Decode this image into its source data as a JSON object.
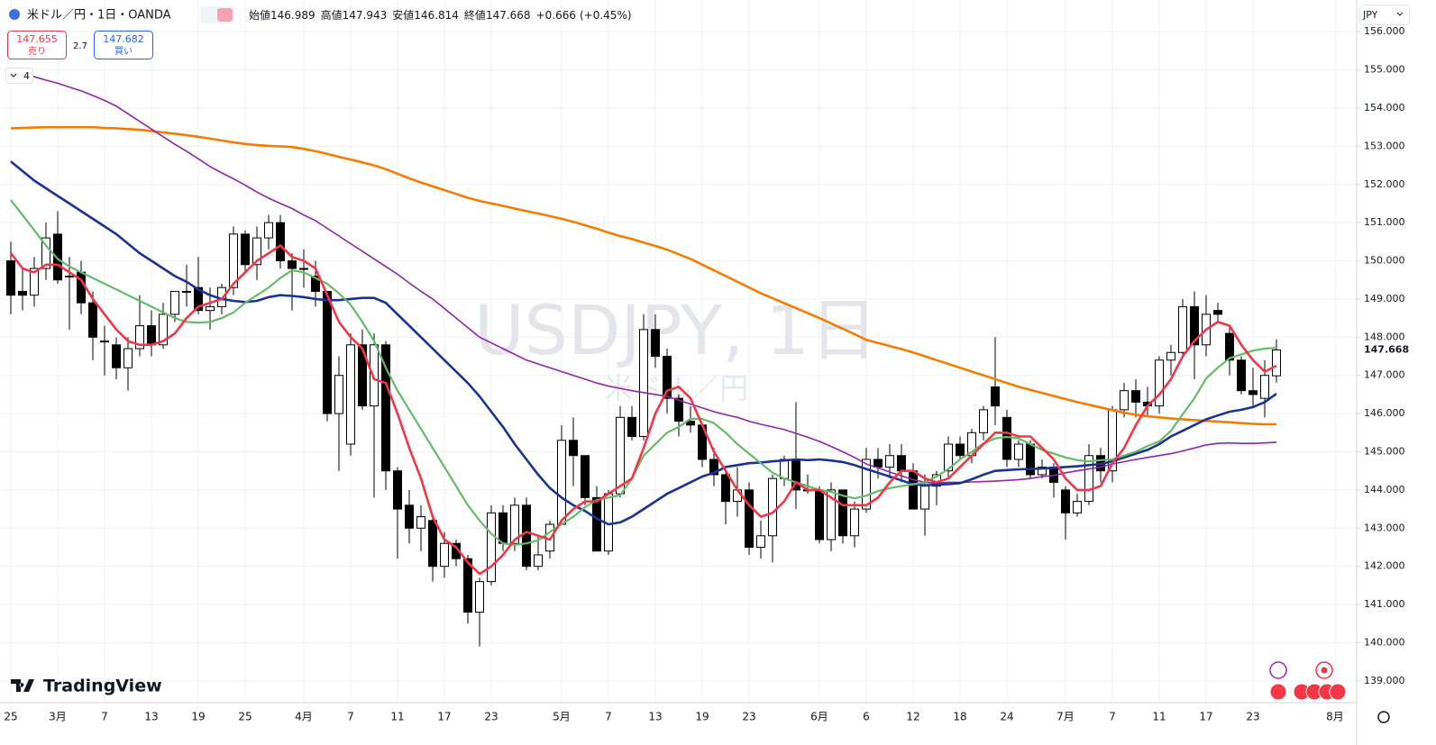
{
  "header": {
    "symbol": "米ドル／円・1日・OANDA",
    "open_label": "始値",
    "high_label": "高値",
    "low_label": "安値",
    "close_label": "終値",
    "change": "+0.666",
    "change_pct": "(+0.45%)"
  },
  "trade": {
    "sell_price": 147.655,
    "sell_label": "売り",
    "spread": 2.7,
    "buy_price": 147.682,
    "buy_label": "買い"
  },
  "indicators_count": 4,
  "currency": "JPY",
  "logo": "TradingView",
  "chart_data": {
    "type": "candlestick",
    "watermark": "USDJPY, 1日",
    "watermark_sub": "米ドル／円",
    "up_color": "#ffffff",
    "down_color": "#000000",
    "grid": true,
    "ylim": [
      138.43,
      156.83
    ],
    "yticks": [
      {
        "value": 139,
        "label": "139.000"
      },
      {
        "value": 140,
        "label": "140.000"
      },
      {
        "value": 141,
        "label": "141.000"
      },
      {
        "value": 142,
        "label": "142.000"
      },
      {
        "value": 143,
        "label": "143.000"
      },
      {
        "value": 144,
        "label": "144.000"
      },
      {
        "value": 145,
        "label": "145.000"
      },
      {
        "value": 146,
        "label": "146.000"
      },
      {
        "value": 147,
        "label": "147.000"
      },
      {
        "value": 148,
        "label": "148.000"
      },
      {
        "value": 149,
        "label": "149.000"
      },
      {
        "value": 150,
        "label": "150.000"
      },
      {
        "value": 151,
        "label": "151.000"
      },
      {
        "value": 152,
        "label": "152.000"
      },
      {
        "value": 153,
        "label": "153.000"
      },
      {
        "value": 154,
        "label": "154.000"
      },
      {
        "value": 155,
        "label": "155.000"
      },
      {
        "value": 156,
        "label": "156.000"
      }
    ],
    "categories": [
      "25",
      null,
      null,
      null,
      "3月",
      null,
      null,
      null,
      "7",
      null,
      null,
      null,
      "13",
      null,
      null,
      null,
      "19",
      null,
      null,
      null,
      "25",
      null,
      null,
      null,
      null,
      "4月",
      null,
      null,
      null,
      "7",
      null,
      null,
      null,
      "11",
      null,
      null,
      null,
      "17",
      null,
      null,
      null,
      "23",
      null,
      null,
      null,
      null,
      null,
      "5月",
      null,
      null,
      null,
      "7",
      null,
      null,
      null,
      "13",
      null,
      null,
      null,
      "19",
      null,
      null,
      null,
      "23",
      null,
      null,
      null,
      null,
      null,
      "6月",
      null,
      null,
      null,
      "6",
      null,
      null,
      null,
      "12",
      null,
      null,
      null,
      "18",
      null,
      null,
      null,
      "24",
      null,
      null,
      null,
      null,
      "7月",
      null,
      null,
      null,
      "7",
      null,
      null,
      null,
      "11",
      null,
      null,
      null,
      "17",
      null,
      null,
      null,
      "23",
      null,
      null,
      null,
      null,
      null,
      null,
      "8月"
    ],
    "open": [
      150.0,
      149.2,
      149.1,
      149.8,
      150.7,
      149.6,
      149.7,
      148.9,
      147.9,
      147.8,
      147.2,
      147.7,
      148.3,
      147.8,
      148.6,
      149.2,
      149.3,
      148.7,
      148.8,
      149.3,
      150.7,
      149.9,
      150.6,
      151.0,
      150.0,
      149.8,
      149.6,
      149.2,
      146.0,
      145.2,
      147.8,
      146.2,
      147.8,
      144.5,
      143.6,
      143.0,
      143.2,
      142.0,
      142.6,
      142.2,
      140.8,
      141.6,
      143.4,
      142.6,
      143.6,
      142.0,
      142.4,
      143.1,
      145.3,
      144.9,
      143.8,
      142.4,
      143.9,
      145.9,
      145.4,
      148.2,
      147.5,
      146.4,
      145.8,
      145.7,
      144.8,
      144.4,
      143.7,
      144.0,
      142.5,
      142.8,
      144.3,
      144.8,
      144.0,
      144.0,
      142.7,
      144.0,
      142.8,
      143.5,
      144.8,
      144.6,
      144.9,
      144.5,
      143.5,
      144.1,
      144.5,
      145.2,
      144.9,
      145.5,
      146.7,
      145.9,
      144.8,
      145.2,
      144.4,
      144.6,
      144.0,
      143.4,
      143.7,
      144.9,
      144.5,
      146.1,
      146.6,
      146.3,
      146.2,
      147.4,
      147.6,
      148.8,
      147.8,
      148.7,
      148.1,
      147.4,
      146.6,
      146.4,
      146.989,
      null,
      null,
      null,
      null,
      null
    ],
    "high": [
      150.5,
      149.8,
      150.1,
      151.0,
      151.3,
      150.1,
      150.0,
      149.2,
      148.3,
      148.0,
      148.0,
      149.1,
      148.7,
      148.9,
      149.2,
      149.9,
      150.1,
      149.3,
      149.4,
      150.9,
      150.8,
      150.9,
      151.2,
      151.2,
      150.2,
      150.3,
      150.0,
      149.2,
      147.5,
      148.1,
      148.2,
      148.1,
      147.9,
      144.6,
      144.0,
      143.6,
      143.3,
      142.9,
      142.7,
      142.3,
      141.7,
      143.6,
      143.6,
      143.8,
      143.8,
      142.8,
      143.2,
      145.7,
      145.9,
      144.9,
      144.1,
      144.0,
      146.2,
      146.2,
      148.6,
      148.6,
      147.7,
      146.5,
      146.2,
      145.7,
      145.1,
      144.5,
      144.6,
      144.2,
      143.2,
      144.4,
      144.9,
      146.3,
      144.4,
      144.1,
      144.2,
      144.0,
      143.7,
      145.1,
      145.1,
      145.2,
      145.2,
      144.7,
      144.4,
      144.5,
      145.4,
      145.4,
      145.6,
      146.2,
      148.0,
      146.1,
      145.3,
      145.3,
      144.8,
      144.7,
      144.1,
      143.9,
      145.2,
      145.1,
      146.2,
      146.8,
      146.9,
      146.7,
      147.5,
      147.8,
      149.0,
      149.2,
      149.1,
      148.9,
      148.3,
      147.5,
      147.2,
      147.4,
      147.943,
      null,
      null,
      null,
      null,
      null
    ],
    "low": [
      148.6,
      148.7,
      148.8,
      149.5,
      149.4,
      148.2,
      148.6,
      147.4,
      147.0,
      146.9,
      146.6,
      147.5,
      147.5,
      147.7,
      148.4,
      148.8,
      148.6,
      148.2,
      148.6,
      149.1,
      149.7,
      149.5,
      150.3,
      149.8,
      148.7,
      149.3,
      148.8,
      145.8,
      144.5,
      144.9,
      146.1,
      143.8,
      144.0,
      142.2,
      142.6,
      142.4,
      141.6,
      141.7,
      142.0,
      140.5,
      139.9,
      141.5,
      142.4,
      142.4,
      141.9,
      141.9,
      142.2,
      143.1,
      144.1,
      143.6,
      142.4,
      142.3,
      143.8,
      145.3,
      145.3,
      147.2,
      146.0,
      145.4,
      145.5,
      144.6,
      144.1,
      143.1,
      143.3,
      142.3,
      142.2,
      142.1,
      144.1,
      143.5,
      143.9,
      142.6,
      142.4,
      142.6,
      142.5,
      143.4,
      144.3,
      144.3,
      144.2,
      143.5,
      142.8,
      143.6,
      144.3,
      144.8,
      144.7,
      145.3,
      145.7,
      144.6,
      144.6,
      144.3,
      144.3,
      143.8,
      142.7,
      143.3,
      143.6,
      144.2,
      144.2,
      145.9,
      145.9,
      145.9,
      146.0,
      147.0,
      147.5,
      146.9,
      147.5,
      148.4,
      147.0,
      146.5,
      146.2,
      145.9,
      146.814,
      null,
      null,
      null,
      null,
      null
    ],
    "close": [
      149.1,
      149.1,
      149.8,
      150.6,
      149.5,
      149.6,
      148.9,
      148.0,
      147.9,
      147.2,
      147.7,
      148.3,
      147.8,
      148.6,
      149.2,
      149.2,
      148.7,
      148.8,
      149.3,
      150.7,
      149.9,
      150.6,
      151.0,
      150.0,
      149.8,
      149.8,
      149.2,
      146.0,
      147.0,
      147.8,
      146.2,
      147.8,
      144.5,
      143.5,
      143.0,
      143.3,
      142.0,
      142.6,
      142.2,
      140.8,
      141.6,
      143.4,
      142.6,
      143.6,
      142.0,
      142.3,
      143.1,
      145.3,
      144.9,
      143.8,
      142.4,
      143.9,
      145.9,
      145.4,
      148.2,
      147.5,
      146.4,
      145.8,
      145.7,
      144.8,
      144.4,
      143.7,
      144.0,
      142.5,
      142.8,
      144.3,
      144.8,
      144.0,
      144.0,
      142.7,
      144.0,
      142.8,
      143.5,
      144.8,
      144.6,
      144.9,
      144.5,
      143.5,
      144.1,
      144.4,
      145.2,
      144.9,
      145.5,
      146.1,
      146.2,
      144.8,
      145.2,
      144.4,
      144.6,
      144.2,
      143.4,
      143.7,
      144.9,
      144.5,
      146.1,
      146.6,
      146.3,
      146.2,
      147.4,
      147.6,
      148.8,
      147.8,
      148.6,
      148.6,
      147.4,
      146.6,
      146.5,
      147.0,
      147.668,
      null,
      null,
      null,
      null,
      null
    ],
    "series": [
      {
        "color": "#f57c00",
        "width": 2.6,
        "values": [
          153.47,
          153.48,
          153.49,
          153.5,
          153.5,
          153.5,
          153.5,
          153.5,
          153.48,
          153.47,
          153.45,
          153.43,
          153.4,
          153.36,
          153.33,
          153.29,
          153.25,
          153.2,
          153.15,
          153.1,
          153.06,
          153.03,
          153.01,
          153.0,
          152.98,
          152.93,
          152.87,
          152.8,
          152.72,
          152.65,
          152.58,
          152.5,
          152.4,
          152.28,
          152.16,
          152.05,
          151.95,
          151.85,
          151.75,
          151.65,
          151.57,
          151.5,
          151.44,
          151.37,
          151.3,
          151.24,
          151.17,
          151.1,
          151.02,
          150.93,
          150.84,
          150.74,
          150.65,
          150.57,
          150.48,
          150.39,
          150.29,
          150.17,
          150.05,
          149.9,
          149.75,
          149.6,
          149.45,
          149.3,
          149.15,
          149.02,
          148.89,
          148.76,
          148.63,
          148.5,
          148.36,
          148.22,
          148.08,
          147.93,
          147.85,
          147.77,
          147.69,
          147.6,
          147.5,
          147.4,
          147.3,
          147.2,
          147.1,
          147.0,
          146.9,
          146.8,
          146.7,
          146.62,
          146.54,
          146.46,
          146.38,
          146.3,
          146.23,
          146.16,
          146.09,
          146.02,
          145.97,
          145.93,
          145.9,
          145.87,
          145.85,
          145.83,
          145.81,
          145.79,
          145.77,
          145.75,
          145.73,
          145.72,
          145.72,
          null,
          null,
          null,
          null,
          null
        ]
      },
      {
        "color": "#8e24aa",
        "width": 1.6,
        "values": [
          154.97,
          154.9,
          154.82,
          154.73,
          154.65,
          154.55,
          154.45,
          154.33,
          154.2,
          154.05,
          153.85,
          153.65,
          153.45,
          153.25,
          153.05,
          152.87,
          152.67,
          152.47,
          152.3,
          152.15,
          151.98,
          151.8,
          151.64,
          151.5,
          151.37,
          151.2,
          151.05,
          150.85,
          150.65,
          150.45,
          150.25,
          150.05,
          149.85,
          149.65,
          149.42,
          149.2,
          149.0,
          148.75,
          148.5,
          148.25,
          148.0,
          147.85,
          147.7,
          147.55,
          147.4,
          147.3,
          147.2,
          147.1,
          147.0,
          146.9,
          146.8,
          146.72,
          146.66,
          146.6,
          146.55,
          146.5,
          146.45,
          146.35,
          146.25,
          146.15,
          146.05,
          145.97,
          145.9,
          145.8,
          145.72,
          145.65,
          145.58,
          145.48,
          145.38,
          145.27,
          145.14,
          145.0,
          144.85,
          144.68,
          144.58,
          144.47,
          144.37,
          144.27,
          144.2,
          144.18,
          144.2,
          144.2,
          144.21,
          144.22,
          144.23,
          144.25,
          144.27,
          144.3,
          144.35,
          144.38,
          144.45,
          144.5,
          144.55,
          144.6,
          144.68,
          144.74,
          144.8,
          144.85,
          144.9,
          144.95,
          145.02,
          145.1,
          145.18,
          145.22,
          145.23,
          145.22,
          145.22,
          145.23,
          145.25,
          null,
          null,
          null,
          null,
          null
        ]
      },
      {
        "color": "#1a3296",
        "width": 2.6,
        "values": [
          152.6,
          152.35,
          152.1,
          151.9,
          151.7,
          151.5,
          151.3,
          151.1,
          150.9,
          150.7,
          150.45,
          150.2,
          150.0,
          149.8,
          149.6,
          149.45,
          149.25,
          149.1,
          149.0,
          148.95,
          148.92,
          148.95,
          149.05,
          149.1,
          149.08,
          149.05,
          149.0,
          148.97,
          148.97,
          149.0,
          149.03,
          149.03,
          148.9,
          148.6,
          148.3,
          148.0,
          147.7,
          147.4,
          147.1,
          146.8,
          146.45,
          146.05,
          145.65,
          145.2,
          144.8,
          144.4,
          144.05,
          143.8,
          143.6,
          143.45,
          143.25,
          143.1,
          143.15,
          143.3,
          143.5,
          143.7,
          143.9,
          144.05,
          144.2,
          144.35,
          144.45,
          144.6,
          144.65,
          144.7,
          144.72,
          144.75,
          144.77,
          144.8,
          144.78,
          144.8,
          144.77,
          144.73,
          144.65,
          144.55,
          144.45,
          144.35,
          144.25,
          144.15,
          144.12,
          144.14,
          144.15,
          144.18,
          144.28,
          144.4,
          144.5,
          144.52,
          144.54,
          144.55,
          144.56,
          144.58,
          144.6,
          144.62,
          144.65,
          144.68,
          144.75,
          144.85,
          144.95,
          145.05,
          145.2,
          145.4,
          145.55,
          145.7,
          145.85,
          145.95,
          146.05,
          146.1,
          146.17,
          146.3,
          146.52,
          null,
          null,
          null,
          null,
          null
        ]
      },
      {
        "color": "#66bb6a",
        "width": 2.2,
        "values": [
          151.59,
          151.2,
          150.8,
          150.4,
          150.05,
          149.85,
          149.7,
          149.55,
          149.4,
          149.25,
          149.1,
          148.95,
          148.8,
          148.65,
          148.5,
          148.4,
          148.38,
          148.4,
          148.5,
          148.65,
          148.9,
          149.1,
          149.3,
          149.55,
          149.75,
          149.7,
          149.55,
          149.4,
          149.15,
          148.85,
          148.4,
          147.9,
          147.2,
          146.6,
          146.1,
          145.6,
          145.1,
          144.6,
          144.1,
          143.6,
          143.2,
          142.85,
          142.6,
          142.56,
          142.6,
          142.68,
          142.9,
          143.1,
          143.3,
          143.55,
          143.74,
          143.8,
          143.86,
          144.3,
          144.9,
          145.2,
          145.5,
          145.65,
          145.86,
          145.86,
          145.75,
          145.5,
          145.2,
          144.95,
          144.7,
          144.45,
          144.3,
          144.2,
          144.1,
          144.0,
          143.95,
          143.85,
          143.78,
          143.85,
          143.97,
          144.05,
          144.1,
          144.15,
          144.2,
          144.35,
          144.55,
          144.8,
          145.0,
          145.22,
          145.35,
          145.39,
          145.35,
          145.2,
          145.05,
          144.95,
          144.85,
          144.78,
          144.75,
          144.78,
          144.8,
          144.9,
          145.0,
          145.15,
          145.27,
          145.55,
          145.98,
          146.4,
          146.92,
          147.2,
          147.45,
          147.55,
          147.65,
          147.7,
          147.72,
          null,
          null,
          null,
          null,
          null
        ]
      },
      {
        "color": "#f23645",
        "width": 2.6,
        "values": [
          150.2,
          149.8,
          149.7,
          149.9,
          149.9,
          149.7,
          149.5,
          149.0,
          148.6,
          148.2,
          147.9,
          147.8,
          147.8,
          147.9,
          148.1,
          148.5,
          148.8,
          148.9,
          149.0,
          149.4,
          149.7,
          150.0,
          150.2,
          150.4,
          150.1,
          150.0,
          149.8,
          149.1,
          148.4,
          148.0,
          147.7,
          146.9,
          146.8,
          146.0,
          145.1,
          144.3,
          143.3,
          142.7,
          142.5,
          142.1,
          141.8,
          142.0,
          142.3,
          142.7,
          142.9,
          142.8,
          142.7,
          143.2,
          143.5,
          143.7,
          143.7,
          143.9,
          144.1,
          144.3,
          145.1,
          146.0,
          146.6,
          146.7,
          146.4,
          145.7,
          145.0,
          144.5,
          144.0,
          143.6,
          143.3,
          143.4,
          143.7,
          144.2,
          144.0,
          144.0,
          143.8,
          143.6,
          143.6,
          143.6,
          143.8,
          144.2,
          144.5,
          144.5,
          144.3,
          144.2,
          144.3,
          144.6,
          144.9,
          145.2,
          145.5,
          145.5,
          145.4,
          145.4,
          145.1,
          144.8,
          144.3,
          144.0,
          144.0,
          144.1,
          144.7,
          145.1,
          145.7,
          146.2,
          146.5,
          146.9,
          147.5,
          147.9,
          148.2,
          148.4,
          148.3,
          147.8,
          147.4,
          147.1,
          147.25,
          null,
          null,
          null,
          null,
          null
        ]
      }
    ]
  }
}
